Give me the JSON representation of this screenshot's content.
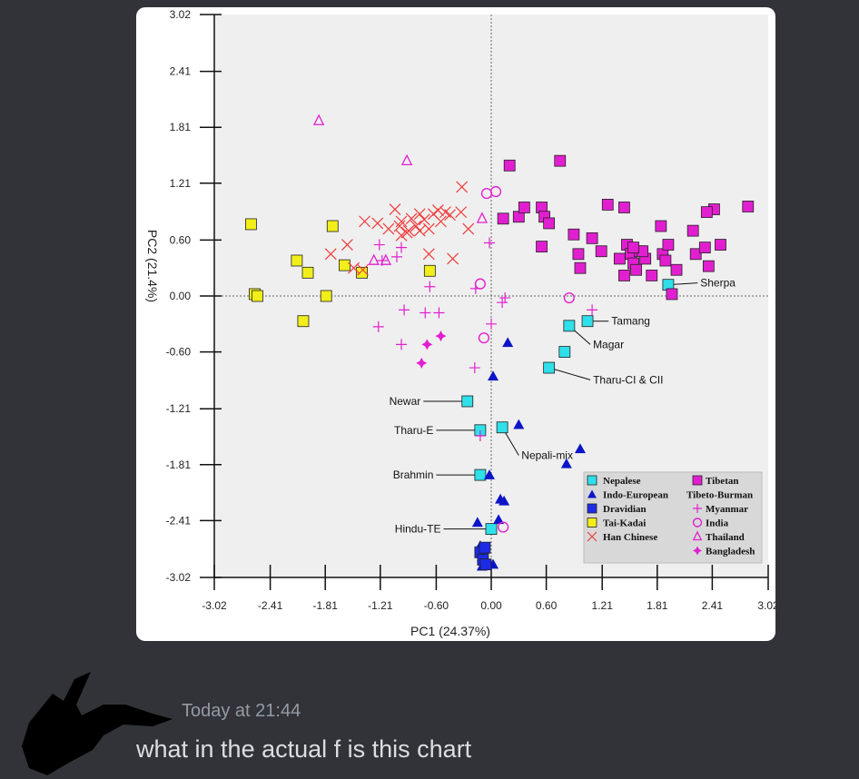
{
  "message": {
    "timestamp": "Today at 21:44",
    "text": "what in the actual f is this chart"
  },
  "colors": {
    "background": "#313338",
    "nepalese": "#2fe0ea",
    "indo_european": "#0c14c8",
    "dravidian": "#1c2be6",
    "tai_kadai": "#f2ee1a",
    "han_chinese": "#ee3b3b",
    "tibetan": "#e21fd0",
    "tibeto_burman": "#e21fd0"
  },
  "chart_data": {
    "type": "scatter",
    "xlabel": "PC1 (24.37%)",
    "ylabel": "PC2 (21.4%)",
    "xlim": [
      -3.02,
      3.02
    ],
    "ylim": [
      -3.02,
      3.02
    ],
    "xticks": [
      "-3.02",
      "-2.41",
      "-1.81",
      "-1.21",
      "-0.60",
      "0.00",
      "0.60",
      "1.21",
      "1.81",
      "2.41",
      "3.02"
    ],
    "yticks": [
      "3.02",
      "2.41",
      "1.81",
      "1.21",
      "0.60",
      "0.00",
      "-0.60",
      "-1.21",
      "-1.81",
      "-2.41",
      "-3.02"
    ],
    "legend_position": "bottom-right",
    "legend": [
      {
        "label": "Nepalese",
        "marker": "square",
        "color": "#2fe0ea"
      },
      {
        "label": "Indo-European",
        "marker": "triangle",
        "color": "#0c14c8"
      },
      {
        "label": "Dravidian",
        "marker": "square",
        "color": "#1c2be6"
      },
      {
        "label": "Tai-Kadai",
        "marker": "square",
        "color": "#f2ee1a"
      },
      {
        "label": "Han Chinese",
        "marker": "x",
        "color": "#ee3b3b"
      },
      {
        "label": "Tibetan",
        "marker": "square",
        "color": "#e21fd0"
      },
      {
        "label": "Tibeto-Burman",
        "marker": "none",
        "color": "#000000"
      },
      {
        "label": "Myanmar",
        "marker": "plus",
        "color": "#e21fd0"
      },
      {
        "label": "India",
        "marker": "circle",
        "color": "#e21fd0"
      },
      {
        "label": "Thailand",
        "marker": "triangle-open",
        "color": "#e21fd0"
      },
      {
        "label": "Bangladesh",
        "marker": "star",
        "color": "#e21fd0"
      }
    ],
    "annotations": [
      {
        "text": "Sherpa",
        "x": 1.93,
        "y": 0.12,
        "tx": 2.25,
        "ty": 0.14
      },
      {
        "text": "Tamang",
        "x": 1.05,
        "y": -0.27,
        "tx": 1.28,
        "ty": -0.27
      },
      {
        "text": "Magar",
        "x": 0.85,
        "y": -0.32,
        "tx": 1.08,
        "ty": -0.52
      },
      {
        "text": "Tharu-CI & CII",
        "x": 0.63,
        "y": -0.77,
        "tx": 1.08,
        "ty": -0.9
      },
      {
        "text": "Newar",
        "x": -0.26,
        "y": -1.13,
        "tx": -0.74,
        "ty": -1.13
      },
      {
        "text": "Tharu-E",
        "x": -0.12,
        "y": -1.44,
        "tx": -0.6,
        "ty": -1.44
      },
      {
        "text": "Nepali-mix",
        "x": 0.12,
        "y": -1.41,
        "tx": 0.3,
        "ty": -1.71
      },
      {
        "text": "Brahmin",
        "x": -0.12,
        "y": -1.92,
        "tx": -0.6,
        "ty": -1.92
      },
      {
        "text": "Hindu-TE",
        "x": 0.0,
        "y": -2.5,
        "tx": -0.52,
        "ty": -2.5
      }
    ],
    "series": [
      {
        "name": "Nepalese",
        "marker": "square",
        "color": "#2fe0ea",
        "x": [
          -0.26,
          -0.12,
          -0.12,
          0.12,
          0.0,
          1.05,
          0.85,
          0.8,
          0.63,
          1.93
        ],
        "y": [
          -1.13,
          -1.44,
          -1.92,
          -1.41,
          -2.5,
          -0.27,
          -0.32,
          -0.6,
          -0.77,
          0.12
        ]
      },
      {
        "name": "Indo-European",
        "marker": "triangle",
        "color": "#0c14c8",
        "x": [
          0.18,
          0.02,
          0.3,
          0.97,
          0.82,
          -0.02,
          0.08,
          0.14,
          0.1,
          -0.15,
          -0.12,
          -0.08,
          -0.1,
          -0.05,
          0.02,
          -0.1
        ],
        "y": [
          -0.5,
          -0.86,
          -1.38,
          -1.64,
          -1.8,
          -1.92,
          -2.4,
          -2.2,
          -2.18,
          -2.43,
          -2.68,
          -2.72,
          -2.8,
          -2.85,
          -2.88,
          -2.9
        ]
      },
      {
        "name": "Dravidian",
        "marker": "square",
        "color": "#1c2be6",
        "x": [
          -0.12,
          -0.07,
          -0.09,
          -0.06
        ],
        "y": [
          -2.75,
          -2.7,
          -2.83,
          -2.88
        ]
      },
      {
        "name": "Tai-Kadai",
        "marker": "square",
        "color": "#f2ee1a",
        "x": [
          -2.62,
          -2.58,
          -2.55,
          -2.12,
          -2.0,
          -1.8,
          -1.73,
          -1.6,
          -1.41,
          -0.67,
          -2.05
        ],
        "y": [
          0.77,
          0.02,
          0.0,
          0.38,
          0.25,
          0.0,
          0.75,
          0.33,
          0.25,
          0.27,
          -0.27
        ]
      },
      {
        "name": "Han Chinese",
        "marker": "x",
        "color": "#ee3b3b",
        "x": [
          -1.75,
          -1.57,
          -1.38,
          -1.24,
          -1.12,
          -1.05,
          -0.98,
          -0.92,
          -0.87,
          -0.82,
          -0.78,
          -0.73,
          -0.68,
          -0.63,
          -0.58,
          -0.55,
          -0.5,
          -0.45,
          -0.68,
          -0.42,
          -0.32,
          -0.25,
          -0.33,
          -1.5,
          -1.4,
          -0.98,
          -0.9,
          -1.0,
          -0.78
        ],
        "y": [
          0.45,
          0.55,
          0.8,
          0.78,
          0.72,
          0.93,
          0.8,
          0.68,
          0.83,
          0.75,
          0.7,
          0.82,
          0.72,
          0.88,
          0.92,
          0.8,
          0.9,
          0.87,
          0.45,
          0.4,
          1.17,
          0.72,
          0.9,
          0.3,
          0.28,
          0.65,
          0.7,
          0.75,
          0.88
        ]
      },
      {
        "name": "Tibetan",
        "marker": "square",
        "color": "#e21fd0",
        "x": [
          0.2,
          0.75,
          0.13,
          0.3,
          0.36,
          0.55,
          0.58,
          0.63,
          0.55,
          0.9,
          0.95,
          0.97,
          1.1,
          1.2,
          1.27,
          1.45,
          1.48,
          1.52,
          1.55,
          1.62,
          1.58,
          1.68,
          1.75,
          1.85,
          1.87,
          1.93,
          1.97,
          2.02,
          2.2,
          2.23,
          2.33,
          2.37,
          2.43,
          2.5,
          2.8,
          1.4,
          1.65,
          1.9,
          2.35,
          1.45,
          1.55
        ],
        "y": [
          1.4,
          1.45,
          0.83,
          0.85,
          0.95,
          0.95,
          0.85,
          0.78,
          0.53,
          0.66,
          0.45,
          0.3,
          0.62,
          0.48,
          0.98,
          0.95,
          0.55,
          0.45,
          0.35,
          0.48,
          0.28,
          0.4,
          0.22,
          0.75,
          0.45,
          0.55,
          0.02,
          0.28,
          0.7,
          0.45,
          0.52,
          0.32,
          0.93,
          0.55,
          0.96,
          0.4,
          0.48,
          0.38,
          0.9,
          0.22,
          0.52
        ]
      },
      {
        "name": "Myanmar",
        "marker": "plus",
        "color": "#e21fd0",
        "x": [
          -1.22,
          -1.03,
          -1.19,
          -0.98,
          -0.95,
          -0.67,
          -0.72,
          -0.57,
          -1.23,
          -0.98,
          -0.17,
          -0.02,
          0.0,
          0.12,
          0.15,
          -0.18,
          1.1,
          -0.12
        ],
        "y": [
          0.55,
          0.42,
          0.38,
          0.52,
          -0.15,
          0.1,
          -0.18,
          -0.18,
          -0.33,
          -0.52,
          0.08,
          0.57,
          -0.3,
          -0.07,
          -0.02,
          -0.77,
          -0.15,
          -1.5
        ]
      },
      {
        "name": "India",
        "marker": "circle",
        "color": "#e21fd0",
        "x": [
          -0.05,
          0.05,
          -0.12,
          -0.08,
          0.85,
          0.13
        ],
        "y": [
          1.1,
          1.12,
          0.13,
          -0.45,
          -0.02,
          -2.48
        ]
      },
      {
        "name": "Thailand",
        "marker": "triangle-open",
        "color": "#e21fd0",
        "x": [
          -1.88,
          -0.92,
          -1.15,
          -1.28,
          -0.1
        ],
        "y": [
          1.88,
          1.45,
          0.38,
          0.38,
          0.83
        ]
      },
      {
        "name": "Bangladesh",
        "marker": "star",
        "color": "#e21fd0",
        "x": [
          -0.7,
          -0.55,
          -0.76
        ],
        "y": [
          -0.52,
          -0.43,
          -0.72
        ]
      }
    ]
  }
}
